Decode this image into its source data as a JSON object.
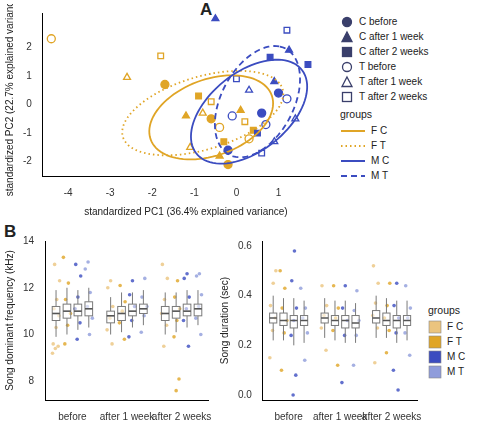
{
  "chart_data": [
    {
      "type": "scatter",
      "panel_label": "A",
      "x_label": "standardized PC1 (36.4% explained variance)",
      "y_label": "standardized PC2 (22.7% explained variance)",
      "xlim": [
        -4.6,
        2.2
      ],
      "xticks": [
        -4,
        -3,
        -2,
        -1,
        0,
        1
      ],
      "ylim": [
        -2.5,
        3.2
      ],
      "yticks": [
        -2,
        -1,
        0,
        1,
        2
      ],
      "grid": false,
      "legend": "right",
      "legend_title": "groups",
      "conditions": [
        {
          "name": "C before",
          "marker": "circle"
        },
        {
          "name": "C after 1 week",
          "marker": "triangle"
        },
        {
          "name": "C after 2 weeks",
          "marker": "square"
        },
        {
          "name": "T before",
          "marker": "circle-open"
        },
        {
          "name": "T after 1 week",
          "marker": "triangle-open"
        },
        {
          "name": "T after 2 weeks",
          "marker": "square-open"
        }
      ],
      "series": [
        {
          "name": "F C",
          "color": "#E0A526",
          "line_style": "solid",
          "ellipse": {
            "center": [
              -0.6,
              -0.45
            ],
            "semi_axes": [
              1.7,
              1.2
            ],
            "angle": 45
          }
        },
        {
          "name": "F T",
          "color": "#E0A526",
          "line_style": "dotted",
          "ellipse": {
            "center": [
              -0.8,
              -0.3
            ],
            "semi_axes": [
              2.1,
              1.2
            ],
            "angle": 30
          }
        },
        {
          "name": "M C",
          "color": "#3B4CC0",
          "line_style": "solid",
          "ellipse": {
            "center": [
              0.3,
              -0.25
            ],
            "semi_axes": [
              2.0,
              1.1
            ],
            "angle": 60
          }
        },
        {
          "name": "M T",
          "color": "#3B4CC0",
          "line_style": "dashed",
          "ellipse": {
            "center": [
              0.5,
              0.1
            ],
            "semi_axes": [
              2.0,
              0.9
            ],
            "angle": 75
          }
        }
      ],
      "points": [
        {
          "x": -4.4,
          "y": 2.3,
          "condition": "T before",
          "group": "F T"
        },
        {
          "x": -0.4,
          "y": -0.8,
          "condition": "T before",
          "group": "F T"
        },
        {
          "x": 0.3,
          "y": -1.2,
          "condition": "T before",
          "group": "F T"
        },
        {
          "x": -2.6,
          "y": 0.95,
          "condition": "T after 1 week",
          "group": "F T"
        },
        {
          "x": -0.8,
          "y": -0.3,
          "condition": "T after 1 week",
          "group": "F T"
        },
        {
          "x": -1.1,
          "y": -1.5,
          "condition": "T after 1 week",
          "group": "F T"
        },
        {
          "x": -1.8,
          "y": 1.7,
          "condition": "T after 2 weeks",
          "group": "F T"
        },
        {
          "x": -0.6,
          "y": 0.1,
          "condition": "T after 2 weeks",
          "group": "F T"
        },
        {
          "x": 0.2,
          "y": -0.6,
          "condition": "T after 2 weeks",
          "group": "F T"
        },
        {
          "x": -1.7,
          "y": 0.7,
          "condition": "C before",
          "group": "F C"
        },
        {
          "x": -0.6,
          "y": -0.5,
          "condition": "C before",
          "group": "F C"
        },
        {
          "x": -0.2,
          "y": -2.1,
          "condition": "C before",
          "group": "F C"
        },
        {
          "x": -1.2,
          "y": -0.4,
          "condition": "C after 1 week",
          "group": "F C"
        },
        {
          "x": -0.4,
          "y": -1.8,
          "condition": "C after 1 week",
          "group": "F C"
        },
        {
          "x": 0.1,
          "y": -0.2,
          "condition": "C after 1 week",
          "group": "F C"
        },
        {
          "x": -0.9,
          "y": 0.3,
          "condition": "C after 2 weeks",
          "group": "F C"
        },
        {
          "x": -0.3,
          "y": -1.3,
          "condition": "C after 2 weeks",
          "group": "F C"
        },
        {
          "x": 0.4,
          "y": -0.9,
          "condition": "C after 2 weeks",
          "group": "F C"
        },
        {
          "x": 0.6,
          "y": -0.3,
          "condition": "C before",
          "group": "M C"
        },
        {
          "x": -0.2,
          "y": -1.6,
          "condition": "C before",
          "group": "M C"
        },
        {
          "x": 1.0,
          "y": 0.4,
          "condition": "C before",
          "group": "M C"
        },
        {
          "x": -0.5,
          "y": 3.0,
          "condition": "C after 1 week",
          "group": "M C"
        },
        {
          "x": 1.25,
          "y": 1.9,
          "condition": "C after 1 week",
          "group": "M C"
        },
        {
          "x": 0.9,
          "y": 0.8,
          "condition": "C after 1 week",
          "group": "M C"
        },
        {
          "x": 1.7,
          "y": 1.4,
          "condition": "C after 2 weeks",
          "group": "M C"
        },
        {
          "x": 0.8,
          "y": 1.65,
          "condition": "C after 2 weeks",
          "group": "M C"
        },
        {
          "x": 0.5,
          "y": -1.0,
          "condition": "C after 2 weeks",
          "group": "M C"
        },
        {
          "x": 0.7,
          "y": -0.7,
          "condition": "T before",
          "group": "M T"
        },
        {
          "x": 1.2,
          "y": 0.2,
          "condition": "T before",
          "group": "M T"
        },
        {
          "x": -0.1,
          "y": -0.4,
          "condition": "T before",
          "group": "M T"
        },
        {
          "x": 0.3,
          "y": 0.5,
          "condition": "T after 1 week",
          "group": "M T"
        },
        {
          "x": 0.9,
          "y": -1.3,
          "condition": "T after 1 week",
          "group": "M T"
        },
        {
          "x": 1.4,
          "y": -0.5,
          "condition": "T after 1 week",
          "group": "M T"
        },
        {
          "x": 1.2,
          "y": 2.6,
          "condition": "T after 2 weeks",
          "group": "M T"
        },
        {
          "x": 0.0,
          "y": 0.9,
          "condition": "T after 2 weeks",
          "group": "M T"
        },
        {
          "x": 0.6,
          "y": -1.7,
          "condition": "T after 2 weeks",
          "group": "M T"
        }
      ]
    },
    {
      "type": "box",
      "panel_label": "B",
      "y_label": "Song dominant frequency (kHz)",
      "categories": [
        "before",
        "after 1 week",
        "after 2 weeks"
      ],
      "ylim": [
        7.2,
        14
      ],
      "yticks": [
        8,
        10,
        12,
        14
      ],
      "grid": false,
      "series": [
        {
          "name": "F C",
          "color": "#EBC47E",
          "boxes": [
            {
              "min": 9.9,
              "q1": 10.6,
              "median": 10.9,
              "q3": 11.2,
              "max": 11.9,
              "points": [
                9.2,
                9.4,
                9.5,
                9.6,
                10.3,
                10.8,
                11.1,
                11.5,
                12.3,
                13.0
              ]
            },
            {
              "min": 10.0,
              "q1": 10.5,
              "median": 10.8,
              "q3": 11.0,
              "max": 11.6,
              "points": [
                9.6,
                10.2,
                10.7,
                11.2,
                12.0,
                12.3
              ]
            },
            {
              "min": 10.0,
              "q1": 10.6,
              "median": 10.9,
              "q3": 11.2,
              "max": 11.8,
              "points": [
                9.5,
                10.4,
                10.9,
                11.5,
                12.4,
                13.0
              ]
            }
          ]
        },
        {
          "name": "F T",
          "color": "#E0A526",
          "boxes": [
            {
              "min": 10.0,
              "q1": 10.7,
              "median": 11.0,
              "q3": 11.3,
              "max": 12.0,
              "points": [
                9.6,
                10.4,
                10.9,
                11.5,
                12.2,
                13.3
              ]
            },
            {
              "min": 10.1,
              "q1": 10.6,
              "median": 10.9,
              "q3": 11.2,
              "max": 11.8,
              "points": [
                9.8,
                10.5,
                11.0,
                11.4,
                12.1
              ]
            },
            {
              "min": 10.1,
              "q1": 10.7,
              "median": 11.0,
              "q3": 11.2,
              "max": 11.8,
              "points": [
                7.6,
                8.1,
                9.9,
                10.6,
                11.1,
                11.6,
                12.3
              ]
            }
          ]
        },
        {
          "name": "M C",
          "color": "#3B4CC0",
          "boxes": [
            {
              "min": 10.2,
              "q1": 10.8,
              "median": 11.0,
              "q3": 11.3,
              "max": 11.9,
              "points": [
                9.8,
                10.5,
                11.1,
                11.6,
                12.5,
                13.0
              ]
            },
            {
              "min": 10.3,
              "q1": 10.8,
              "median": 11.0,
              "q3": 11.3,
              "max": 11.8,
              "points": [
                9.9,
                10.6,
                11.2,
                11.7,
                12.3
              ]
            },
            {
              "min": 10.3,
              "q1": 10.8,
              "median": 11.0,
              "q3": 11.3,
              "max": 11.9,
              "points": [
                9.5,
                10.6,
                11.1,
                11.6,
                12.4,
                12.6
              ]
            }
          ]
        },
        {
          "name": "M T",
          "color": "#8F9CDB",
          "boxes": [
            {
              "min": 10.3,
              "q1": 10.8,
              "median": 11.1,
              "q3": 11.4,
              "max": 12.0,
              "points": [
                10.0,
                10.7,
                11.2,
                11.8,
                12.8,
                13.1
              ]
            },
            {
              "min": 10.4,
              "q1": 10.9,
              "median": 11.1,
              "q3": 11.3,
              "max": 11.9,
              "points": [
                10.1,
                10.8,
                11.2,
                11.6,
                12.4
              ]
            },
            {
              "min": 10.4,
              "q1": 10.8,
              "median": 11.1,
              "q3": 11.3,
              "max": 11.9,
              "points": [
                10.0,
                10.7,
                11.2,
                11.7,
                12.5,
                12.6
              ]
            }
          ]
        }
      ]
    },
    {
      "type": "box",
      "y_label": "Song duration (sec)",
      "categories": [
        "before",
        "after 1 week",
        "after 2 weeks"
      ],
      "ylim": [
        -0.02,
        0.62
      ],
      "yticks": [
        {
          "value": 0,
          "label": "0.0"
        },
        0.2,
        0.4,
        0.6
      ],
      "grid": false,
      "legend": "right",
      "legend_title": "groups",
      "series": [
        {
          "name": "F C",
          "color": "#EBC47E",
          "boxes": [
            {
              "min": 0.22,
              "q1": 0.29,
              "median": 0.31,
              "q3": 0.33,
              "max": 0.4,
              "points": [
                0.15,
                0.26,
                0.31,
                0.36,
                0.45,
                0.5
              ]
            },
            {
              "min": 0.23,
              "q1": 0.29,
              "median": 0.31,
              "q3": 0.33,
              "max": 0.39,
              "points": [
                0.18,
                0.27,
                0.32,
                0.36,
                0.44
              ]
            },
            {
              "min": 0.23,
              "q1": 0.29,
              "median": 0.31,
              "q3": 0.34,
              "max": 0.4,
              "points": [
                0.13,
                0.27,
                0.32,
                0.37,
                0.45,
                0.52
              ]
            }
          ]
        },
        {
          "name": "F T",
          "color": "#E0A526",
          "boxes": [
            {
              "min": 0.22,
              "q1": 0.28,
              "median": 0.3,
              "q3": 0.33,
              "max": 0.39,
              "points": [
                0.1,
                0.25,
                0.3,
                0.35,
                0.43,
                0.5
              ]
            },
            {
              "min": 0.22,
              "q1": 0.28,
              "median": 0.3,
              "q3": 0.32,
              "max": 0.38,
              "points": [
                0.12,
                0.26,
                0.31,
                0.35,
                0.44
              ]
            },
            {
              "min": 0.23,
              "q1": 0.28,
              "median": 0.3,
              "q3": 0.33,
              "max": 0.39,
              "points": [
                0.17,
                0.26,
                0.31,
                0.36,
                0.45
              ]
            }
          ]
        },
        {
          "name": "M C",
          "color": "#3B4CC0",
          "boxes": [
            {
              "min": 0.2,
              "q1": 0.27,
              "median": 0.3,
              "q3": 0.32,
              "max": 0.39,
              "points": [
                0.0,
                0.08,
                0.24,
                0.3,
                0.35,
                0.46,
                0.58
              ]
            },
            {
              "min": 0.21,
              "q1": 0.27,
              "median": 0.3,
              "q3": 0.32,
              "max": 0.38,
              "points": [
                0.05,
                0.24,
                0.3,
                0.35,
                0.44
              ]
            },
            {
              "min": 0.21,
              "q1": 0.27,
              "median": 0.3,
              "q3": 0.32,
              "max": 0.38,
              "points": [
                0.02,
                0.1,
                0.25,
                0.31,
                0.36,
                0.45
              ]
            }
          ]
        },
        {
          "name": "M T",
          "color": "#8F9CDB",
          "boxes": [
            {
              "min": 0.21,
              "q1": 0.28,
              "median": 0.3,
              "q3": 0.32,
              "max": 0.38,
              "points": [
                0.14,
                0.25,
                0.31,
                0.35,
                0.43
              ]
            },
            {
              "min": 0.21,
              "q1": 0.27,
              "median": 0.29,
              "q3": 0.32,
              "max": 0.37,
              "points": [
                0.12,
                0.24,
                0.3,
                0.34,
                0.42
              ]
            },
            {
              "min": 0.22,
              "q1": 0.28,
              "median": 0.3,
              "q3": 0.32,
              "max": 0.38,
              "points": [
                0.16,
                0.25,
                0.31,
                0.35,
                0.44
              ]
            }
          ]
        }
      ]
    }
  ]
}
